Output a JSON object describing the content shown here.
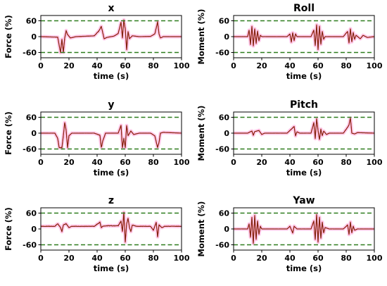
{
  "chart_data": [
    {
      "type": "line",
      "title": "x",
      "xlabel": "time (s)",
      "ylabel": "Force (%)",
      "xlim": [
        0,
        100
      ],
      "ylim": [
        -80,
        80
      ],
      "xticks": [
        "0",
        "20",
        "40",
        "60",
        "80",
        "100"
      ],
      "yticks": [
        "60",
        "0",
        "-60"
      ],
      "thresholds": [
        60,
        -60
      ],
      "keypoints": [
        [
          0,
          0
        ],
        [
          12,
          -2
        ],
        [
          14,
          -60
        ],
        [
          15,
          -10
        ],
        [
          16,
          -60
        ],
        [
          17,
          -5
        ],
        [
          18,
          22
        ],
        [
          19,
          8
        ],
        [
          21,
          -5
        ],
        [
          25,
          0
        ],
        [
          38,
          3
        ],
        [
          41,
          20
        ],
        [
          43,
          38
        ],
        [
          44,
          15
        ],
        [
          45,
          -8
        ],
        [
          47,
          -3
        ],
        [
          52,
          2
        ],
        [
          55,
          12
        ],
        [
          57,
          55
        ],
        [
          58,
          -5
        ],
        [
          59,
          62
        ],
        [
          60,
          30
        ],
        [
          61,
          -50
        ],
        [
          62,
          20
        ],
        [
          63,
          -8
        ],
        [
          65,
          3
        ],
        [
          70,
          0
        ],
        [
          78,
          1
        ],
        [
          81,
          10
        ],
        [
          83,
          55
        ],
        [
          84,
          10
        ],
        [
          85,
          -5
        ],
        [
          87,
          0
        ],
        [
          100,
          0
        ]
      ]
    },
    {
      "type": "line",
      "title": "Roll",
      "xlabel": "time (s)",
      "ylabel": "Moment (%)",
      "xlim": [
        0,
        100
      ],
      "ylim": [
        -80,
        80
      ],
      "xticks": [
        "0",
        "20",
        "40",
        "60",
        "80",
        "100"
      ],
      "yticks": [
        "60",
        "0",
        "-60"
      ],
      "thresholds": [
        60,
        -60
      ],
      "keypoints": [
        [
          0,
          0
        ],
        [
          10,
          0
        ],
        [
          11,
          25
        ],
        [
          12,
          -30
        ],
        [
          13,
          40
        ],
        [
          14,
          -35
        ],
        [
          15,
          30
        ],
        [
          16,
          -25
        ],
        [
          17,
          20
        ],
        [
          18,
          -15
        ],
        [
          19,
          5
        ],
        [
          20,
          0
        ],
        [
          38,
          0
        ],
        [
          40,
          10
        ],
        [
          41,
          -20
        ],
        [
          42,
          15
        ],
        [
          43,
          -15
        ],
        [
          44,
          10
        ],
        [
          45,
          0
        ],
        [
          55,
          0
        ],
        [
          57,
          25
        ],
        [
          58,
          -35
        ],
        [
          59,
          45
        ],
        [
          60,
          -50
        ],
        [
          61,
          40
        ],
        [
          62,
          -30
        ],
        [
          63,
          20
        ],
        [
          64,
          -10
        ],
        [
          65,
          0
        ],
        [
          78,
          0
        ],
        [
          81,
          20
        ],
        [
          82,
          -25
        ],
        [
          83,
          30
        ],
        [
          84,
          -20
        ],
        [
          85,
          15
        ],
        [
          86,
          -10
        ],
        [
          87,
          5
        ],
        [
          90,
          -8
        ],
        [
          92,
          5
        ],
        [
          95,
          -3
        ],
        [
          100,
          0
        ]
      ]
    },
    {
      "type": "line",
      "title": "y",
      "xlabel": "time (s)",
      "ylabel": "Force (%)",
      "xlim": [
        0,
        100
      ],
      "ylim": [
        -80,
        80
      ],
      "xticks": [
        "0",
        "20",
        "40",
        "60",
        "80",
        "100"
      ],
      "yticks": [
        "60",
        "0",
        "-60"
      ],
      "thresholds": [
        60,
        -60
      ],
      "keypoints": [
        [
          0,
          0
        ],
        [
          10,
          0
        ],
        [
          12,
          -20
        ],
        [
          13,
          -55
        ],
        [
          14,
          -55
        ],
        [
          15,
          -55
        ],
        [
          16,
          -10
        ],
        [
          17,
          40
        ],
        [
          18,
          10
        ],
        [
          19,
          -55
        ],
        [
          20,
          -10
        ],
        [
          22,
          0
        ],
        [
          38,
          0
        ],
        [
          42,
          -8
        ],
        [
          43,
          -55
        ],
        [
          44,
          -30
        ],
        [
          46,
          0
        ],
        [
          55,
          0
        ],
        [
          57,
          30
        ],
        [
          58,
          -55
        ],
        [
          59,
          -20
        ],
        [
          60,
          -55
        ],
        [
          61,
          30
        ],
        [
          62,
          -10
        ],
        [
          64,
          8
        ],
        [
          66,
          -5
        ],
        [
          70,
          0
        ],
        [
          78,
          0
        ],
        [
          81,
          -10
        ],
        [
          83,
          -55
        ],
        [
          84,
          -35
        ],
        [
          85,
          0
        ],
        [
          87,
          3
        ],
        [
          100,
          0
        ]
      ]
    },
    {
      "type": "line",
      "title": "Pitch",
      "xlabel": "time (s)",
      "ylabel": "Moment (%)",
      "xlim": [
        0,
        100
      ],
      "ylim": [
        -80,
        80
      ],
      "xticks": [
        "0",
        "20",
        "40",
        "60",
        "80",
        "100"
      ],
      "yticks": [
        "60",
        "0",
        "-60"
      ],
      "thresholds": [
        60,
        -60
      ],
      "keypoints": [
        [
          0,
          0
        ],
        [
          10,
          0
        ],
        [
          13,
          8
        ],
        [
          14,
          -8
        ],
        [
          15,
          6
        ],
        [
          18,
          10
        ],
        [
          20,
          -5
        ],
        [
          22,
          0
        ],
        [
          38,
          0
        ],
        [
          41,
          15
        ],
        [
          43,
          25
        ],
        [
          44,
          -10
        ],
        [
          45,
          5
        ],
        [
          47,
          0
        ],
        [
          55,
          0
        ],
        [
          57,
          40
        ],
        [
          58,
          -20
        ],
        [
          59,
          55
        ],
        [
          60,
          10
        ],
        [
          61,
          -25
        ],
        [
          62,
          15
        ],
        [
          63,
          -10
        ],
        [
          64,
          8
        ],
        [
          66,
          -5
        ],
        [
          68,
          0
        ],
        [
          78,
          0
        ],
        [
          82,
          30
        ],
        [
          83,
          58
        ],
        [
          84,
          0
        ],
        [
          86,
          -3
        ],
        [
          88,
          2
        ],
        [
          100,
          0
        ]
      ]
    },
    {
      "type": "line",
      "title": "z",
      "xlabel": "time (s)",
      "ylabel": "Force (%)",
      "xlim": [
        0,
        100
      ],
      "ylim": [
        -80,
        80
      ],
      "xticks": [
        "0",
        "20",
        "40",
        "60",
        "80",
        "100"
      ],
      "yticks": [
        "60",
        "0",
        "-60"
      ],
      "thresholds": [
        60,
        -60
      ],
      "keypoints": [
        [
          0,
          10
        ],
        [
          10,
          10
        ],
        [
          12,
          20
        ],
        [
          14,
          5
        ],
        [
          15,
          -10
        ],
        [
          16,
          15
        ],
        [
          18,
          20
        ],
        [
          20,
          5
        ],
        [
          22,
          10
        ],
        [
          38,
          10
        ],
        [
          40,
          18
        ],
        [
          42,
          25
        ],
        [
          43,
          5
        ],
        [
          44,
          10
        ],
        [
          47,
          12
        ],
        [
          55,
          12
        ],
        [
          57,
          30
        ],
        [
          58,
          -10
        ],
        [
          59,
          62
        ],
        [
          60,
          -50
        ],
        [
          61,
          20
        ],
        [
          62,
          40
        ],
        [
          63,
          5
        ],
        [
          64,
          -10
        ],
        [
          65,
          15
        ],
        [
          68,
          10
        ],
        [
          78,
          10
        ],
        [
          80,
          -5
        ],
        [
          82,
          25
        ],
        [
          83,
          -30
        ],
        [
          84,
          15
        ],
        [
          86,
          5
        ],
        [
          88,
          10
        ],
        [
          100,
          10
        ]
      ]
    },
    {
      "type": "line",
      "title": "Yaw",
      "xlabel": "time (s)",
      "ylabel": "Moment (%)",
      "xlim": [
        0,
        100
      ],
      "ylim": [
        -80,
        80
      ],
      "xticks": [
        "0",
        "20",
        "40",
        "60",
        "80",
        "100"
      ],
      "yticks": [
        "60",
        "0",
        "-60"
      ],
      "thresholds": [
        60,
        -60
      ],
      "keypoints": [
        [
          0,
          0
        ],
        [
          10,
          0
        ],
        [
          11,
          20
        ],
        [
          12,
          -30
        ],
        [
          13,
          45
        ],
        [
          14,
          -55
        ],
        [
          15,
          50
        ],
        [
          16,
          -40
        ],
        [
          17,
          30
        ],
        [
          18,
          -20
        ],
        [
          19,
          10
        ],
        [
          20,
          0
        ],
        [
          38,
          0
        ],
        [
          40,
          10
        ],
        [
          42,
          -15
        ],
        [
          43,
          10
        ],
        [
          45,
          0
        ],
        [
          55,
          0
        ],
        [
          57,
          30
        ],
        [
          58,
          -40
        ],
        [
          59,
          55
        ],
        [
          60,
          -50
        ],
        [
          61,
          45
        ],
        [
          62,
          -35
        ],
        [
          63,
          25
        ],
        [
          64,
          -15
        ],
        [
          65,
          5
        ],
        [
          68,
          0
        ],
        [
          78,
          0
        ],
        [
          81,
          15
        ],
        [
          82,
          -20
        ],
        [
          83,
          25
        ],
        [
          84,
          -15
        ],
        [
          85,
          10
        ],
        [
          86,
          -5
        ],
        [
          88,
          0
        ],
        [
          100,
          0
        ]
      ]
    }
  ]
}
